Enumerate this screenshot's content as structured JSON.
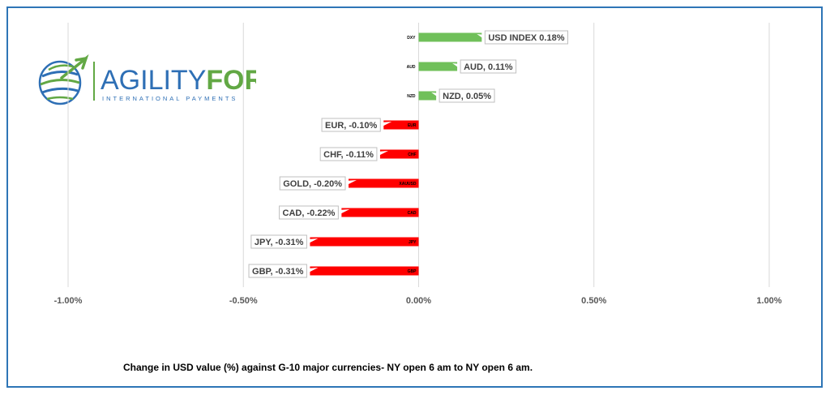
{
  "logo": {
    "word_1": "AGILITY",
    "word_2": "FOREX",
    "tagline": "INTERNATIONAL PAYMENTS",
    "name": "Agility Forex"
  },
  "caption": "Change in  USD value (%)  against  G-10 major currencies- NY open 6 am to NY open 6 am.",
  "chart_data": {
    "type": "bar",
    "orientation": "horizontal",
    "title": "",
    "xlabel": "",
    "ylabel": "",
    "xlim": [
      -1.0,
      1.0
    ],
    "x_ticks": [
      -1.0,
      -0.5,
      0.0,
      0.5,
      1.0
    ],
    "x_tick_labels": [
      "-1.00%",
      "-0.50%",
      "0.00%",
      "0.50%",
      "1.00%"
    ],
    "grid": "vertical",
    "legend": "none",
    "positive_color": "#70c05a",
    "negative_color": "#ff0000",
    "categories": [
      "DXY",
      "AUD",
      "NZD",
      "EUR",
      "CHF",
      "XAUUSD",
      "CAD",
      "JPY",
      "GBP"
    ],
    "values": [
      0.18,
      0.11,
      0.05,
      -0.1,
      -0.11,
      -0.2,
      -0.22,
      -0.31,
      -0.31
    ],
    "data_labels": [
      "USD INDEX 0.18%",
      "AUD, 0.11%",
      "NZD, 0.05%",
      "EUR, -0.10%",
      "CHF, -0.11%",
      "GOLD, -0.20%",
      "CAD, -0.22%",
      "JPY, -0.31%",
      "GBP, -0.31%"
    ]
  }
}
